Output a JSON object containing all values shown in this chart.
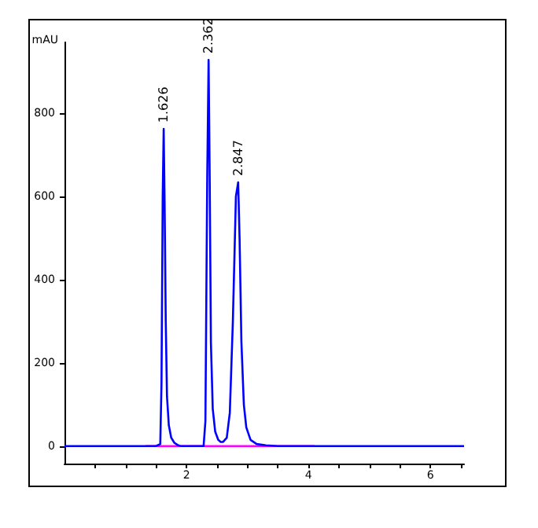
{
  "chart_data": {
    "type": "line",
    "ylabel": "mAU",
    "x": [
      0,
      1.3,
      1.5,
      1.57,
      1.59,
      1.61,
      1.626,
      1.64,
      1.66,
      1.68,
      1.71,
      1.75,
      1.8,
      1.85,
      1.9,
      2.28,
      2.31,
      2.34,
      2.362,
      2.38,
      2.4,
      2.43,
      2.47,
      2.52,
      2.56,
      2.6,
      2.66,
      2.71,
      2.76,
      2.81,
      2.847,
      2.87,
      2.9,
      2.94,
      2.98,
      3.05,
      3.15,
      3.3,
      3.5,
      6.55
    ],
    "series": [
      {
        "color": "#0000ff",
        "values": [
          0,
          0,
          0,
          5,
          150,
          600,
          762,
          600,
          300,
          120,
          50,
          20,
          8,
          3,
          0,
          0,
          60,
          650,
          928,
          650,
          250,
          90,
          35,
          15,
          10,
          10,
          20,
          80,
          300,
          600,
          634,
          500,
          250,
          100,
          45,
          15,
          5,
          2,
          0,
          0
        ]
      },
      {
        "color": "#ff00ff",
        "x": [
          1.33,
          4.1
        ],
        "values": [
          0,
          0
        ]
      }
    ],
    "annotations": [
      {
        "text": "1.626",
        "x": 1.626,
        "y": 762
      },
      {
        "text": "2.362",
        "x": 2.362,
        "y": 928
      },
      {
        "text": "2.847",
        "x": 2.847,
        "y": 634
      }
    ],
    "xlim": [
      0,
      6.55
    ],
    "xticks": [
      {
        "value": 0.5,
        "label": null
      },
      {
        "value": 1,
        "label": null
      },
      {
        "value": 1.5,
        "label": null
      },
      2,
      {
        "value": 2.5,
        "label": null
      },
      {
        "value": 3,
        "label": null
      },
      {
        "value": 3.5,
        "label": null
      },
      4,
      {
        "value": 4.5,
        "label": null
      },
      {
        "value": 5,
        "label": null
      },
      {
        "value": 5.5,
        "label": null
      },
      6,
      {
        "value": 6.5,
        "label": null
      }
    ],
    "ylim": [
      -42,
      970
    ],
    "yticks": [
      0,
      200,
      400,
      600,
      800
    ],
    "grid": false,
    "marker": "none",
    "line_style": "solid"
  }
}
